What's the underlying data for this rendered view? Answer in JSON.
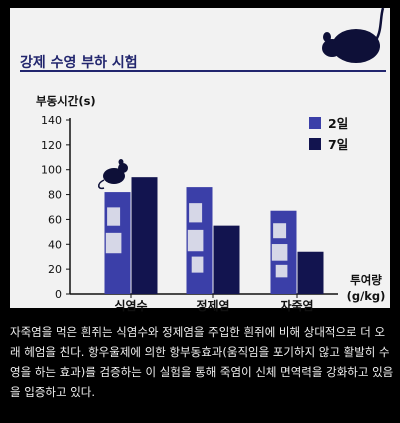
{
  "caption": "자죽염을 먹은 흰쥐는 식염수와 정제염을 주입한 흰쥐에 비해 상대적으로 더 오래 헤엄을 친다. 항우울제에 의한 항부동효과(움직임을 포기하지 않고 활발히 수영을 하는 효과)를 검증하는 이 실험을 통해 죽염이 신체 면역력을 강화하고 있음을 입증하고 있다.",
  "colors": {
    "series_2day": "#3b3fa8",
    "series_7day": "#12144f",
    "text": "#111111",
    "title": "#22266e"
  },
  "chart_data": {
    "type": "bar",
    "title": "강제 수영 부하 시험",
    "ylabel": "부동시간(s)",
    "xlabel": "투여량\n(g/kg)",
    "categories": [
      "식염수",
      "정제염",
      "자죽염"
    ],
    "series": [
      {
        "name": "2일",
        "values": [
          82,
          86,
          67
        ]
      },
      {
        "name": "7일",
        "values": [
          94,
          55,
          34
        ]
      }
    ],
    "ylim": [
      0,
      140
    ],
    "yticks": [
      0,
      20,
      40,
      60,
      80,
      100,
      120,
      140
    ],
    "legend_position": "top-right",
    "grid": false
  }
}
